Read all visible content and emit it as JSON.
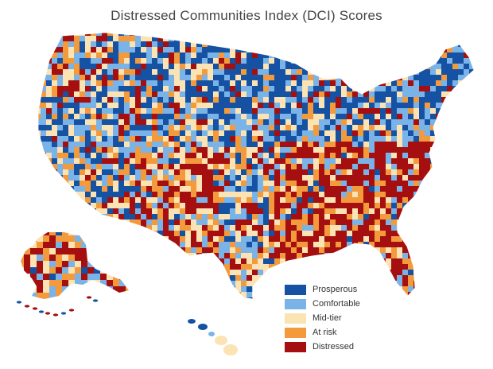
{
  "title": "Distressed Communities Index (DCI) Scores",
  "legend": [
    {
      "label": "Prosperous",
      "color": "#1552a3"
    },
    {
      "label": "Comfortable",
      "color": "#7ab3e8"
    },
    {
      "label": "Mid-tier",
      "color": "#fbe3b4"
    },
    {
      "label": "At risk",
      "color": "#f39a3c"
    },
    {
      "label": "Distressed",
      "color": "#a50f0f"
    }
  ],
  "map": {
    "regions": [
      "contiguous-us",
      "alaska",
      "hawaii"
    ],
    "unit": "county"
  }
}
